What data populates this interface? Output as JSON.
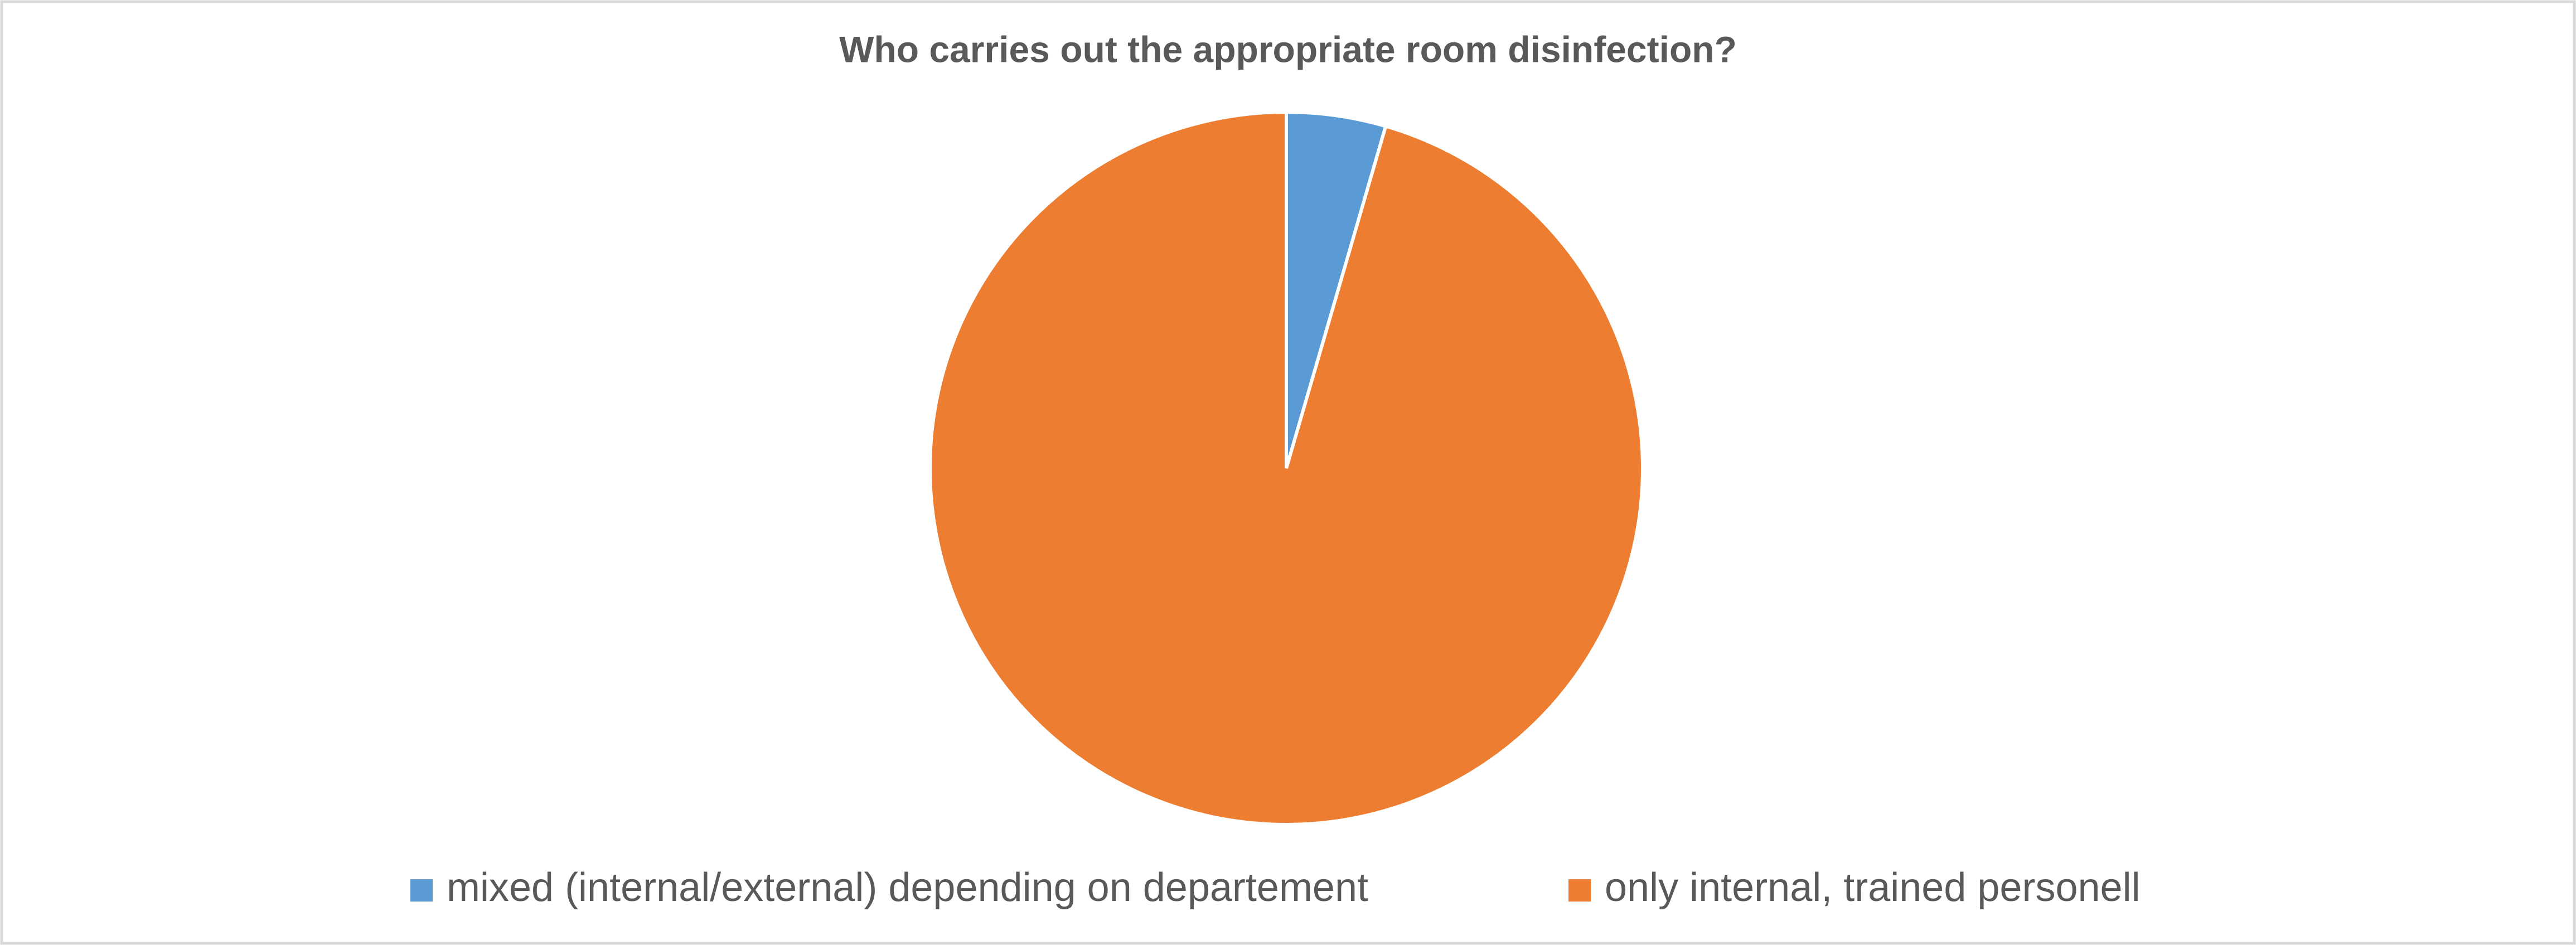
{
  "chart_data": {
    "type": "pie",
    "title": "Who carries out the appropriate room disinfection?",
    "categories": [
      "mixed (internal/external) depending on departement",
      "only internal, trained personell"
    ],
    "values": [
      4.5,
      95.5
    ],
    "colors": [
      "#5b9bd5",
      "#ed7d31"
    ],
    "legend": "bottom"
  }
}
